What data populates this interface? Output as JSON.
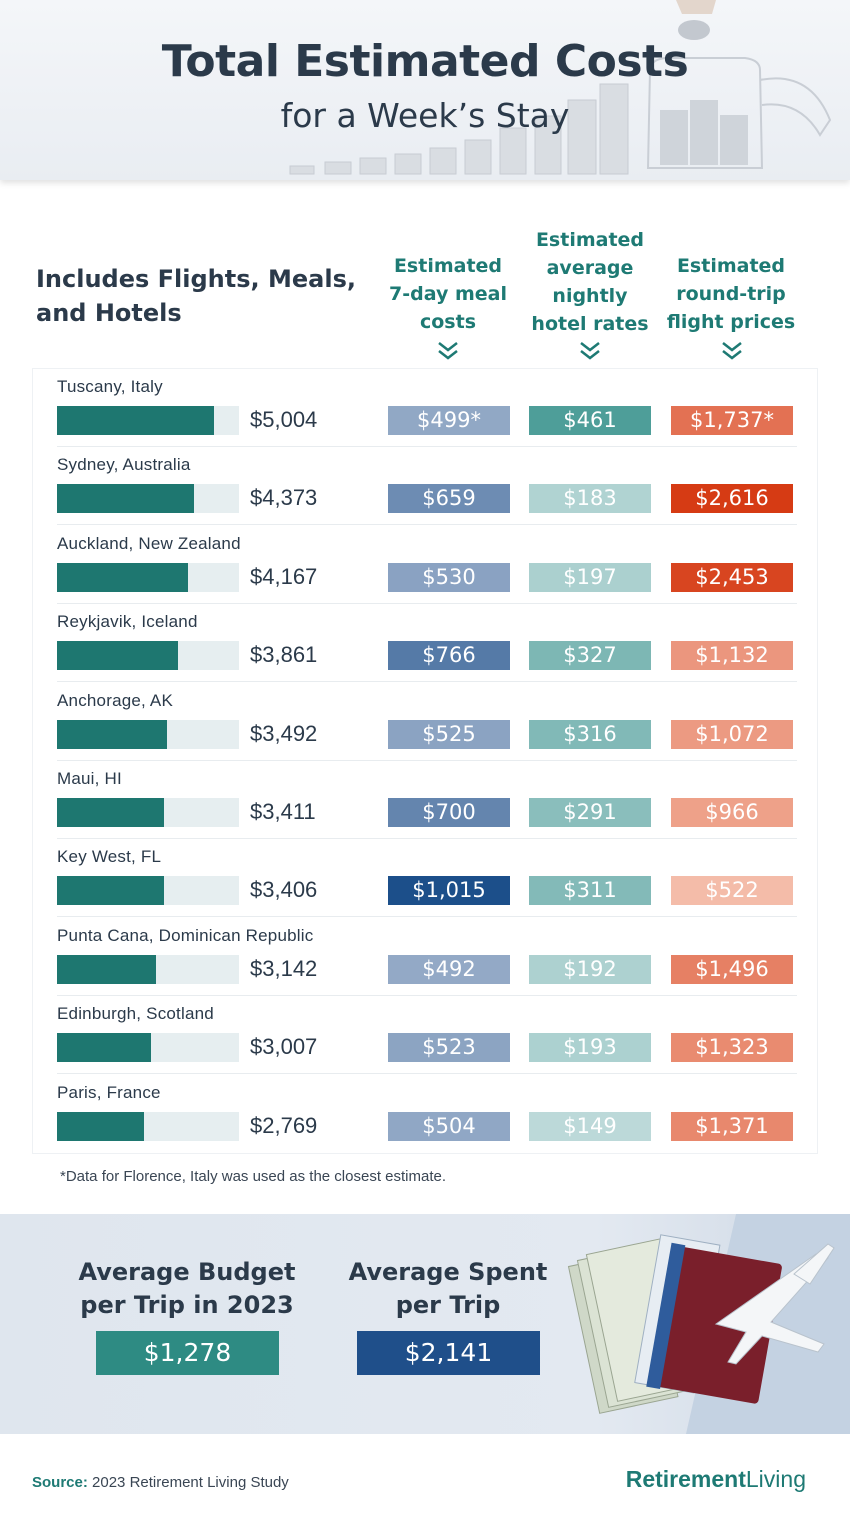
{
  "header": {
    "title": "Total Estimated Costs",
    "subtitle": "for a Week’s Stay"
  },
  "table": {
    "section_title_line1": "Includes Flights, Meals,",
    "section_title_line2": "and Hotels",
    "col_meal": [
      "Estimated",
      "7-day meal",
      "costs"
    ],
    "col_hotel": [
      "Estimated",
      "average",
      "nightly",
      "hotel rates"
    ],
    "col_flight": [
      "Estimated",
      "round-trip",
      "flight prices"
    ]
  },
  "chart_data": {
    "type": "table",
    "bar_max": 5800,
    "rows": [
      {
        "city": "Tuscany, Italy",
        "total": 5004,
        "total_label": "$5,004",
        "meal": "$499*",
        "hotel": "$461",
        "flight": "$1,737*"
      },
      {
        "city": "Sydney, Australia",
        "total": 4373,
        "total_label": "$4,373",
        "meal": "$659",
        "hotel": "$183",
        "flight": "$2,616"
      },
      {
        "city": "Auckland, New Zealand",
        "total": 4167,
        "total_label": "$4,167",
        "meal": "$530",
        "hotel": "$197",
        "flight": "$2,453"
      },
      {
        "city": "Reykjavik, Iceland",
        "total": 3861,
        "total_label": "$3,861",
        "meal": "$766",
        "hotel": "$327",
        "flight": "$1,132"
      },
      {
        "city": "Anchorage, AK",
        "total": 3492,
        "total_label": "$3,492",
        "meal": "$525",
        "hotel": "$316",
        "flight": "$1,072"
      },
      {
        "city": "Maui, HI",
        "total": 3411,
        "total_label": "$3,411",
        "meal": "$700",
        "hotel": "$291",
        "flight": "$966"
      },
      {
        "city": "Key West, FL",
        "total": 3406,
        "total_label": "$3,406",
        "meal": "$1,015",
        "hotel": "$311",
        "flight": "$522"
      },
      {
        "city": "Punta Cana, Dominican Republic",
        "total": 3142,
        "total_label": "$3,142",
        "meal": "$492",
        "hotel": "$192",
        "flight": "$1,496"
      },
      {
        "city": "Edinburgh, Scotland",
        "total": 3007,
        "total_label": "$3,007",
        "meal": "$523",
        "hotel": "$193",
        "flight": "$1,323"
      },
      {
        "city": "Paris, France",
        "total": 2769,
        "total_label": "$2,769",
        "meal": "$504",
        "hotel": "$149",
        "flight": "$1,371"
      }
    ],
    "colors": {
      "bar_fill": "#1e7770",
      "bar_track": "#e6eef0",
      "meal_scale": [
        "#93a9c6",
        "#1c4f8a"
      ],
      "hotel_scale": [
        "#bcd9d9",
        "#4e9e99"
      ],
      "flight_scale": [
        "#f4bca9",
        "#d63b14"
      ]
    }
  },
  "footnote": "*Data for Florence, Italy was used as the closest estimate.",
  "averages": {
    "budget_label_line1": "Average Budget",
    "budget_label_line2": "per Trip in 2023",
    "budget_value": "$1,278",
    "budget_color": "#2e8b83",
    "spent_label_line1": "Average Spent",
    "spent_label_line2": "per Trip",
    "spent_value": "$2,141",
    "spent_color": "#1f4f8a"
  },
  "footer": {
    "source_label": "Source:",
    "source_text": " 2023 Retirement Living Study",
    "brand_bold": "Retirement",
    "brand_regular": "Living"
  }
}
